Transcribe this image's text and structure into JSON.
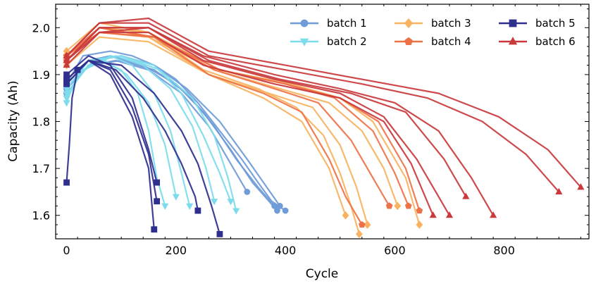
{
  "chart_data": {
    "type": "line",
    "title": "",
    "xlabel": "Cycle",
    "ylabel": "Capacity (Ah)",
    "xlim": [
      -20,
      955
    ],
    "ylim": [
      1.55,
      2.05
    ],
    "xticks": [
      0,
      200,
      400,
      600,
      800
    ],
    "yticks": [
      1.6,
      1.7,
      1.8,
      1.9,
      2.0
    ],
    "ytick_labels": [
      "1.6",
      "1.7",
      "1.8",
      "1.9",
      "2.0"
    ],
    "legend_position": "top-right",
    "series": [
      {
        "name": "batch 1",
        "color": "#6f9bd8",
        "marker": "circle",
        "curves": [
          {
            "x": [
              0,
              30,
              80,
              120,
              160,
              200,
              240,
              280,
              320,
              350,
              375,
              400
            ],
            "y": [
              1.88,
              1.94,
              1.95,
              1.94,
              1.92,
              1.89,
              1.84,
              1.78,
              1.72,
              1.67,
              1.63,
              1.61
            ]
          },
          {
            "x": [
              0,
              40,
              80,
              140,
              200,
              250,
              300,
              340,
              370,
              385
            ],
            "y": [
              1.87,
              1.93,
              1.94,
              1.92,
              1.88,
              1.82,
              1.74,
              1.67,
              1.63,
              1.61
            ]
          },
          {
            "x": [
              0,
              40,
              100,
              160,
              220,
              270,
              310,
              350,
              380
            ],
            "y": [
              1.86,
              1.92,
              1.93,
              1.91,
              1.86,
              1.79,
              1.72,
              1.66,
              1.62
            ]
          },
          {
            "x": [
              0,
              50,
              100,
              160,
              220,
              280,
              330,
              360,
              390
            ],
            "y": [
              1.87,
              1.93,
              1.94,
              1.92,
              1.87,
              1.8,
              1.72,
              1.67,
              1.62
            ]
          },
          {
            "x": [
              0,
              40,
              90,
              150,
              210,
              260,
              300,
              330
            ],
            "y": [
              1.86,
              1.92,
              1.93,
              1.91,
              1.86,
              1.79,
              1.71,
              1.65
            ]
          }
        ]
      },
      {
        "name": "batch 2",
        "color": "#7ddcec",
        "marker": "triangle-down",
        "curves": [
          {
            "x": [
              0,
              20,
              60,
              100,
              130,
              150,
              165,
              180
            ],
            "y": [
              1.84,
              1.9,
              1.93,
              1.91,
              1.86,
              1.78,
              1.68,
              1.62
            ]
          },
          {
            "x": [
              0,
              30,
              80,
              120,
              160,
              190,
              210,
              225
            ],
            "y": [
              1.85,
              1.91,
              1.94,
              1.92,
              1.86,
              1.78,
              1.69,
              1.62
            ]
          },
          {
            "x": [
              0,
              40,
              90,
              140,
              190,
              230,
              255,
              270
            ],
            "y": [
              1.86,
              1.92,
              1.94,
              1.92,
              1.87,
              1.79,
              1.7,
              1.63
            ]
          },
          {
            "x": [
              0,
              40,
              100,
              160,
              210,
              250,
              280,
              300
            ],
            "y": [
              1.87,
              1.93,
              1.94,
              1.92,
              1.86,
              1.77,
              1.69,
              1.63
            ]
          },
          {
            "x": [
              0,
              40,
              100,
              170,
              230,
              270,
              295,
              310
            ],
            "y": [
              1.87,
              1.93,
              1.94,
              1.91,
              1.85,
              1.77,
              1.68,
              1.61
            ]
          },
          {
            "x": [
              0,
              30,
              70,
              110,
              150,
              180,
              200
            ],
            "y": [
              1.85,
              1.91,
              1.93,
              1.9,
              1.84,
              1.75,
              1.64
            ]
          }
        ]
      },
      {
        "name": "batch 3",
        "color": "#f9b360",
        "marker": "diamond",
        "curves": [
          {
            "x": [
              0,
              60,
              150,
              250,
              350,
              420,
              470,
              500,
              520,
              535
            ],
            "y": [
              1.94,
              2.0,
              1.99,
              1.91,
              1.87,
              1.83,
              1.77,
              1.69,
              1.62,
              1.56
            ]
          },
          {
            "x": [
              0,
              60,
              150,
              260,
              370,
              450,
              500,
              530,
              550
            ],
            "y": [
              1.93,
              1.99,
              1.98,
              1.9,
              1.86,
              1.83,
              1.75,
              1.66,
              1.58
            ]
          },
          {
            "x": [
              0,
              60,
              150,
              270,
              390,
              480,
              540,
              580,
              605
            ],
            "y": [
              1.94,
              2.0,
              1.98,
              1.91,
              1.87,
              1.84,
              1.78,
              1.7,
              1.62
            ]
          },
          {
            "x": [
              0,
              60,
              150,
              280,
              410,
              500,
              560,
              620,
              645
            ],
            "y": [
              1.95,
              2.01,
              1.99,
              1.91,
              1.88,
              1.85,
              1.8,
              1.68,
              1.58
            ]
          },
          {
            "x": [
              0,
              60,
              150,
              260,
              360,
              430,
              480,
              510
            ],
            "y": [
              1.92,
              1.98,
              1.97,
              1.9,
              1.85,
              1.8,
              1.7,
              1.6
            ]
          }
        ]
      },
      {
        "name": "batch 4",
        "color": "#ee7248",
        "marker": "pentagon",
        "curves": [
          {
            "x": [
              0,
              60,
              160,
              260,
              360,
              430,
              480,
              510,
              540
            ],
            "y": [
              1.93,
              1.99,
              1.98,
              1.9,
              1.86,
              1.82,
              1.72,
              1.64,
              1.58
            ]
          },
          {
            "x": [
              0,
              60,
              160,
              270,
              380,
              460,
              520,
              560,
              590
            ],
            "y": [
              1.94,
              1.99,
              1.98,
              1.91,
              1.87,
              1.84,
              1.76,
              1.68,
              1.62
            ]
          },
          {
            "x": [
              0,
              60,
              160,
              280,
              400,
              490,
              560,
              600,
              625
            ],
            "y": [
              1.94,
              2.0,
              1.98,
              1.91,
              1.88,
              1.85,
              1.78,
              1.69,
              1.62
            ]
          },
          {
            "x": [
              0,
              60,
              160,
              280,
              400,
              500,
              570,
              620,
              645
            ],
            "y": [
              1.94,
              2.0,
              1.98,
              1.91,
              1.88,
              1.85,
              1.8,
              1.7,
              1.61
            ]
          }
        ]
      },
      {
        "name": "batch 5",
        "color": "#2f2f8e",
        "marker": "square",
        "curves": [
          {
            "x": [
              0,
              5,
              10,
              20
            ],
            "y": [
              1.67,
              1.75,
              1.85,
              1.91
            ]
          },
          {
            "x": [
              0,
              40,
              80,
              120,
              150,
              160
            ],
            "y": [
              1.89,
              1.93,
              1.9,
              1.81,
              1.7,
              1.57
            ]
          },
          {
            "x": [
              0,
              40,
              80,
              120,
              150,
              165
            ],
            "y": [
              1.88,
              1.93,
              1.91,
              1.83,
              1.73,
              1.63
            ]
          },
          {
            "x": [
              0,
              40,
              90,
              140,
              180,
              210,
              235,
              240
            ],
            "y": [
              1.89,
              1.93,
              1.91,
              1.85,
              1.78,
              1.71,
              1.64,
              1.61
            ]
          },
          {
            "x": [
              0,
              40,
              100,
              160,
              210,
              240,
              265,
              280
            ],
            "y": [
              1.88,
              1.93,
              1.92,
              1.86,
              1.78,
              1.71,
              1.62,
              1.56
            ]
          },
          {
            "x": [
              0,
              40,
              80,
              120,
              150,
              165
            ],
            "y": [
              1.9,
              1.94,
              1.92,
              1.85,
              1.74,
              1.67
            ]
          }
        ]
      },
      {
        "name": "batch 6",
        "color": "#c93a3c",
        "marker": "triangle",
        "curves": [
          {
            "x": [
              0,
              60,
              150,
              250,
              380,
              500,
              580,
              640,
              680,
              700
            ],
            "y": [
              1.93,
              1.99,
              2.0,
              1.93,
              1.89,
              1.86,
              1.81,
              1.72,
              1.64,
              1.6
            ]
          },
          {
            "x": [
              0,
              60,
              150,
              250,
              380,
              500,
              600,
              680,
              740,
              780
            ],
            "y": [
              1.93,
              2.0,
              2.0,
              1.94,
              1.9,
              1.87,
              1.84,
              1.78,
              1.68,
              1.6
            ]
          },
          {
            "x": [
              0,
              60,
              150,
              260,
              400,
              540,
              660,
              760,
              840,
              900
            ],
            "y": [
              1.94,
              2.01,
              2.01,
              1.94,
              1.91,
              1.88,
              1.85,
              1.8,
              1.73,
              1.65
            ]
          },
          {
            "x": [
              0,
              60,
              150,
              260,
              400,
              540,
              680,
              790,
              880,
              940
            ],
            "y": [
              1.94,
              2.01,
              2.02,
              1.95,
              1.92,
              1.89,
              1.86,
              1.81,
              1.74,
              1.66
            ]
          },
          {
            "x": [
              0,
              60,
              150,
              250,
              380,
              500,
              580,
              630,
              670
            ],
            "y": [
              1.92,
              1.99,
              1.99,
              1.92,
              1.88,
              1.85,
              1.8,
              1.71,
              1.6
            ]
          },
          {
            "x": [
              0,
              60,
              150,
              260,
              390,
              520,
              620,
              690,
              730
            ],
            "y": [
              1.93,
              2.0,
              2.0,
              1.93,
              1.89,
              1.86,
              1.82,
              1.72,
              1.64
            ]
          }
        ]
      }
    ]
  }
}
